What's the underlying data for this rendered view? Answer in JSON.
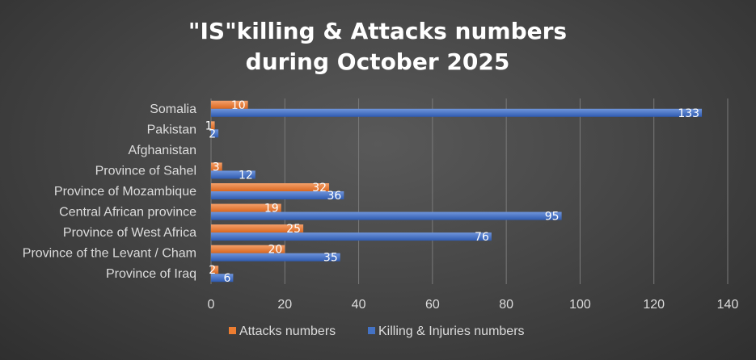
{
  "chart_data": {
    "type": "bar",
    "orientation": "horizontal",
    "title_lines": [
      "\"IS\"killing & Attacks numbers",
      "during October 2025"
    ],
    "categories": [
      "Somalia",
      "Pakistan",
      "Afghanistan",
      "Province of Sahel",
      "Province of Mozambique",
      "Central African province",
      "Province of West Africa",
      "Province of the Levant / Cham",
      "Province of Iraq"
    ],
    "series": [
      {
        "name": "Attacks numbers",
        "color": "#ED7D31",
        "values": [
          10,
          1,
          null,
          3,
          32,
          19,
          25,
          20,
          2
        ]
      },
      {
        "name": "Killing & Injuries numbers",
        "color": "#4472C4",
        "values": [
          133,
          2,
          null,
          12,
          36,
          95,
          76,
          35,
          6
        ]
      }
    ],
    "xlim": [
      0,
      140
    ],
    "xticks": [
      0,
      20,
      40,
      60,
      80,
      100,
      120,
      140
    ],
    "grid": true,
    "legend_position": "bottom"
  }
}
